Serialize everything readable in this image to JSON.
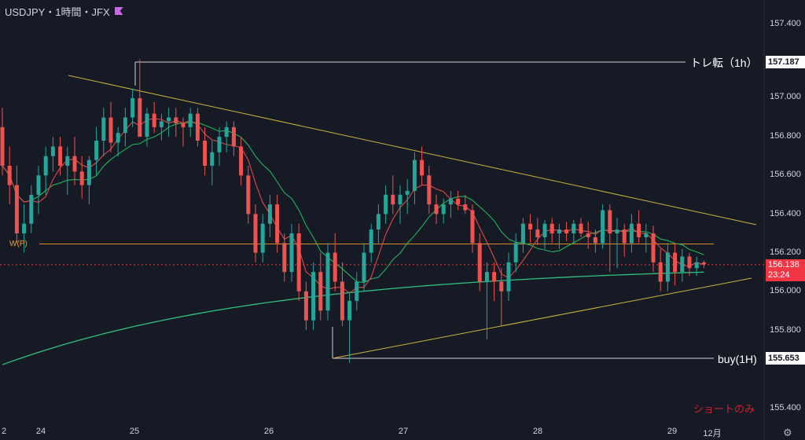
{
  "header": {
    "symbol_title": "USDJPY・1時間・JFX"
  },
  "colors": {
    "background": "#161a25",
    "candle_up": "#26a69a",
    "candle_down": "#ef5350",
    "ma_short": "#e04848",
    "ma_mid": "#21b45a",
    "ma_long": "#2ec27e",
    "trendline": "#c8b43c",
    "w_pivot": "#d98a2b",
    "current_price": "#f23645"
  },
  "annotations": {
    "upper_level_label": "トレ転（1h）",
    "lower_level_label": "buy(1H)",
    "pivot_label": "W(P)",
    "note": "ショートのみ"
  },
  "price_tags": {
    "upper_level": "157.187",
    "lower_level": "155.653",
    "current_price": "156.138",
    "countdown": "23:24"
  },
  "chart_data": {
    "type": "candlestick",
    "symbol": "USDJPY",
    "timeframe": "1時間",
    "broker": "JFX",
    "y_ticks": [
      "157.400",
      "157.200",
      "157.000",
      "156.800",
      "156.600",
      "156.400",
      "156.200",
      "156.000",
      "155.800",
      "155.600",
      "155.400"
    ],
    "x_ticks": [
      "2",
      "24",
      "25",
      "26",
      "27",
      "28",
      "29",
      "12月"
    ],
    "ylim": [
      155.33,
      157.48
    ],
    "grid": false,
    "horizontal_levels": [
      {
        "label": "トレ転（1h）",
        "price": 157.187
      },
      {
        "label": "buy(1H)",
        "price": 155.653
      },
      {
        "label": "W(P)",
        "price": 156.245
      }
    ],
    "current_price": 156.138,
    "candles_ohlc": [
      [
        156.85,
        156.95,
        156.6,
        156.65
      ],
      [
        156.65,
        156.75,
        156.45,
        156.55
      ],
      [
        156.55,
        156.65,
        156.25,
        156.3
      ],
      [
        156.3,
        156.45,
        156.2,
        156.35
      ],
      [
        156.35,
        156.55,
        156.3,
        156.5
      ],
      [
        156.5,
        156.65,
        156.4,
        156.6
      ],
      [
        156.6,
        156.75,
        156.5,
        156.7
      ],
      [
        156.7,
        156.8,
        156.62,
        156.75
      ],
      [
        156.75,
        156.8,
        156.6,
        156.65
      ],
      [
        156.65,
        156.75,
        156.5,
        156.7
      ],
      [
        156.7,
        156.8,
        156.55,
        156.62
      ],
      [
        156.62,
        156.7,
        156.48,
        156.55
      ],
      [
        156.55,
        156.7,
        156.45,
        156.68
      ],
      [
        156.68,
        156.85,
        156.6,
        156.78
      ],
      [
        156.78,
        156.95,
        156.7,
        156.9
      ],
      [
        156.9,
        156.98,
        156.72,
        156.77
      ],
      [
        156.77,
        156.85,
        156.7,
        156.82
      ],
      [
        156.82,
        156.95,
        156.75,
        156.9
      ],
      [
        156.9,
        157.05,
        156.85,
        157.0
      ],
      [
        157.0,
        157.2,
        156.95,
        156.8
      ],
      [
        156.8,
        156.95,
        156.75,
        156.92
      ],
      [
        156.92,
        156.98,
        156.82,
        156.85
      ],
      [
        156.85,
        156.92,
        156.78,
        156.88
      ],
      [
        156.88,
        156.95,
        156.8,
        156.9
      ],
      [
        156.9,
        156.95,
        156.8,
        156.87
      ],
      [
        156.87,
        156.9,
        156.75,
        156.85
      ],
      [
        156.85,
        156.95,
        156.8,
        156.92
      ],
      [
        156.92,
        156.95,
        156.75,
        156.78
      ],
      [
        156.78,
        156.85,
        156.6,
        156.65
      ],
      [
        156.65,
        156.78,
        156.55,
        156.72
      ],
      [
        156.72,
        156.85,
        156.65,
        156.8
      ],
      [
        156.8,
        156.88,
        156.72,
        156.85
      ],
      [
        156.85,
        156.88,
        156.7,
        156.75
      ],
      [
        156.75,
        156.8,
        156.55,
        156.6
      ],
      [
        156.6,
        156.65,
        156.35,
        156.4
      ],
      [
        156.4,
        156.45,
        156.15,
        156.2
      ],
      [
        156.2,
        156.4,
        156.15,
        156.35
      ],
      [
        156.35,
        156.5,
        156.28,
        156.45
      ],
      [
        156.45,
        156.5,
        156.2,
        156.25
      ],
      [
        156.25,
        156.3,
        156.05,
        156.1
      ],
      [
        156.1,
        156.35,
        156.05,
        156.3
      ],
      [
        156.3,
        156.35,
        155.95,
        156.0
      ],
      [
        156.0,
        156.05,
        155.8,
        155.85
      ],
      [
        155.85,
        156.15,
        155.8,
        156.1
      ],
      [
        156.1,
        156.2,
        155.85,
        155.9
      ],
      [
        155.9,
        156.25,
        155.85,
        156.2
      ],
      [
        156.2,
        156.3,
        156.0,
        156.05
      ],
      [
        156.05,
        156.15,
        155.82,
        155.85
      ],
      [
        155.85,
        156.0,
        155.63,
        155.95
      ],
      [
        155.95,
        156.1,
        155.9,
        156.05
      ],
      [
        156.05,
        156.25,
        156.0,
        156.2
      ],
      [
        156.2,
        156.35,
        156.15,
        156.32
      ],
      [
        156.32,
        156.45,
        156.25,
        156.4
      ],
      [
        156.4,
        156.55,
        156.35,
        156.5
      ],
      [
        156.5,
        156.6,
        156.4,
        156.45
      ],
      [
        156.45,
        156.55,
        156.35,
        156.5
      ],
      [
        156.5,
        156.58,
        156.4,
        156.52
      ],
      [
        156.52,
        156.72,
        156.45,
        156.68
      ],
      [
        156.68,
        156.75,
        156.55,
        156.6
      ],
      [
        156.6,
        156.65,
        156.4,
        156.45
      ],
      [
        156.45,
        156.5,
        156.35,
        156.4
      ],
      [
        156.4,
        156.48,
        156.35,
        156.45
      ],
      [
        156.45,
        156.52,
        156.38,
        156.48
      ],
      [
        156.48,
        156.52,
        156.42,
        156.45
      ],
      [
        156.45,
        156.5,
        156.4,
        156.42
      ],
      [
        156.42,
        156.45,
        156.2,
        156.25
      ],
      [
        156.25,
        156.3,
        156.0,
        156.05
      ],
      [
        156.05,
        156.15,
        155.75,
        156.1
      ],
      [
        156.1,
        156.15,
        155.95,
        156.05
      ],
      [
        156.05,
        156.12,
        155.82,
        156.0
      ],
      [
        156.0,
        156.2,
        155.95,
        156.15
      ],
      [
        156.15,
        156.3,
        156.1,
        156.25
      ],
      [
        156.25,
        156.38,
        156.2,
        156.35
      ],
      [
        156.35,
        156.4,
        156.25,
        156.32
      ],
      [
        156.32,
        156.38,
        156.24,
        156.28
      ],
      [
        156.28,
        156.37,
        156.22,
        156.35
      ],
      [
        156.35,
        156.38,
        156.25,
        156.3
      ],
      [
        156.3,
        156.35,
        156.22,
        156.32
      ],
      [
        156.32,
        156.36,
        156.26,
        156.3
      ],
      [
        156.3,
        156.37,
        156.25,
        156.35
      ],
      [
        156.35,
        156.38,
        156.28,
        156.3
      ],
      [
        156.3,
        156.36,
        156.22,
        156.28
      ],
      [
        156.28,
        156.32,
        156.2,
        156.25
      ],
      [
        156.25,
        156.45,
        156.22,
        156.42
      ],
      [
        156.42,
        156.45,
        156.1,
        156.3
      ],
      [
        156.3,
        156.38,
        156.12,
        156.32
      ],
      [
        156.32,
        156.35,
        156.18,
        156.25
      ],
      [
        156.25,
        156.4,
        156.2,
        156.35
      ],
      [
        156.35,
        156.42,
        156.25,
        156.28
      ],
      [
        156.28,
        156.35,
        156.2,
        156.3
      ],
      [
        156.3,
        156.34,
        156.1,
        156.15
      ],
      [
        156.15,
        156.22,
        156.0,
        156.05
      ],
      [
        156.05,
        156.25,
        156.0,
        156.2
      ],
      [
        156.2,
        156.25,
        156.03,
        156.1
      ],
      [
        156.1,
        156.22,
        156.05,
        156.18
      ],
      [
        156.18,
        156.2,
        156.08,
        156.12
      ],
      [
        156.12,
        156.18,
        156.08,
        156.15
      ],
      [
        156.15,
        156.16,
        156.12,
        156.14
      ]
    ]
  }
}
